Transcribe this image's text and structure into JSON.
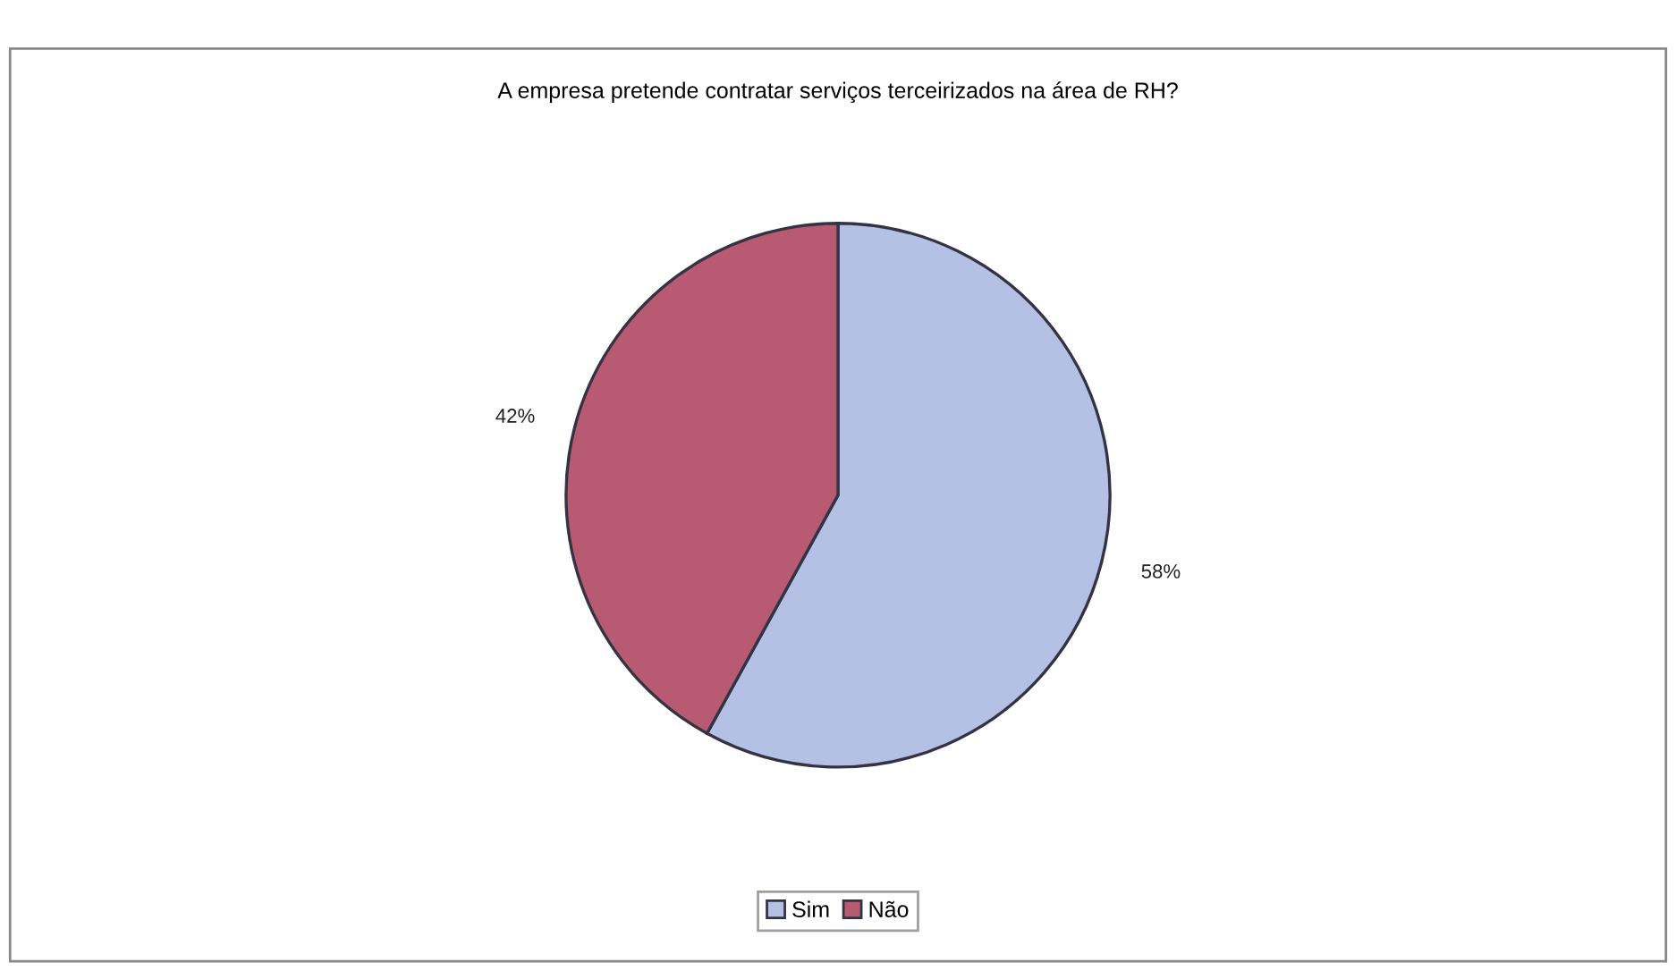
{
  "chart_data": {
    "type": "pie",
    "title": "A empresa pretende contratar serviços terceirizados na área de RH?",
    "categories": [
      "Sim",
      "Não"
    ],
    "values": [
      58,
      42
    ],
    "colors": [
      "#b4c0e4",
      "#b85a72"
    ],
    "value_labels": [
      "58%",
      "42%"
    ],
    "legend": "bottom"
  }
}
